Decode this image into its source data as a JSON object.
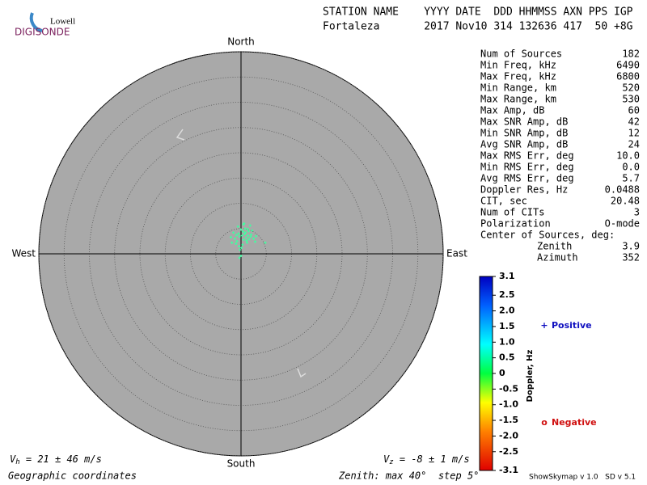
{
  "header": {
    "logo_top": "Lowell",
    "logo_bottom": "DIGISONDE",
    "columns": "STATION NAME    YYYY DATE  DDD HHMMSS AXN PPS IGP",
    "values": "Fortaleza       2017 Nov10 314 132636 417  50 +8G"
  },
  "stats": {
    "rows": [
      {
        "label": "Num of Sources",
        "value": "182"
      },
      {
        "label": "Min Freq, kHz",
        "value": "6490"
      },
      {
        "label": "Max Freq, kHz",
        "value": "6800"
      },
      {
        "label": "Min Range, km",
        "value": "520"
      },
      {
        "label": "Max Range, km",
        "value": "530"
      },
      {
        "label": "Max Amp, dB",
        "value": "60"
      },
      {
        "label": "Max SNR Amp, dB",
        "value": "42"
      },
      {
        "label": "Min SNR Amp, dB",
        "value": "12"
      },
      {
        "label": "Avg SNR Amp, dB",
        "value": "24"
      },
      {
        "label": "Max RMS Err, deg",
        "value": "10.0"
      },
      {
        "label": "Min RMS Err, deg",
        "value": "0.0"
      },
      {
        "label": "Avg RMS Err, deg",
        "value": "5.7"
      },
      {
        "label": "Doppler Res, Hz",
        "value": "0.0488"
      },
      {
        "label": "CIT, sec",
        "value": "20.48"
      },
      {
        "label": "Num of CITs",
        "value": "3"
      },
      {
        "label": "Polarization",
        "value": "O-mode"
      }
    ],
    "center": {
      "title": "Center of Sources, deg:",
      "rows": [
        {
          "label": "Zenith",
          "value": "3.9"
        },
        {
          "label": "Azimuth",
          "value": "352"
        }
      ]
    }
  },
  "chart_data": {
    "type": "scatter",
    "directions": {
      "north": "North",
      "east": "East",
      "south": "South",
      "west": "West"
    },
    "rlim": [
      0,
      40
    ],
    "rticks": [
      5,
      10,
      15,
      20,
      25,
      30,
      35,
      40
    ],
    "grid": true,
    "series": [
      {
        "color": "#40ffa0",
        "x": [
          0.2,
          -0.5,
          1.0,
          1.5,
          -1.2,
          0.8,
          2.0,
          -0.8,
          0.5,
          1.2,
          -1.5,
          0.0,
          2.5,
          1.8,
          -0.3,
          0.9,
          -1.0,
          1.4,
          0.3,
          2.2,
          -2.0,
          0.6,
          1.1,
          -0.6,
          3.0,
          0.1,
          1.6,
          -1.8,
          0.7,
          4.8,
          0.4,
          -0.2,
          1.3,
          0.0,
          2.8,
          -0.9,
          0.5,
          1.9,
          -0.4,
          -0.3
        ],
        "values": [
          3.6,
          4.0,
          3.2,
          4.5,
          3.0,
          5.0,
          3.8,
          2.5,
          2.8,
          2.2,
          4.2,
          4.8,
          3.0,
          5.6,
          3.4,
          4.2,
          2.0,
          3.6,
          1.8,
          4.6,
          3.3,
          6.0,
          2.6,
          5.4,
          3.5,
          1.2,
          2.9,
          2.2,
          3.9,
          2.2,
          4.4,
          0.8,
          4.9,
          -0.4,
          2.4,
          3.7,
          5.8,
          3.4,
          1.5,
          -0.8
        ]
      }
    ],
    "colorbar": {
      "label": "Doppler, Hz",
      "lim": [
        -3.1,
        3.1
      ],
      "ticks": [
        3.1,
        2.5,
        {
          "value": 2,
          "label": "2.0"
        },
        1.5,
        {
          "value": 1,
          "label": "1.0"
        },
        0.5,
        0,
        -0.5,
        {
          "value": -1,
          "label": "-1.0"
        },
        -1.5,
        {
          "value": -2,
          "label": "-2.0"
        },
        -2.5,
        -3.1
      ]
    },
    "legend": [
      {
        "symbol": "+",
        "label": "Positive",
        "color": "#1010c0"
      },
      {
        "symbol": "o",
        "label": "Negative",
        "color": "#d01010"
      }
    ]
  },
  "footer": {
    "vh": {
      "symbol": "V",
      "sub": "h",
      "text": " = 21 ± 46 m/s"
    },
    "vz": {
      "symbol": "V",
      "sub": "z",
      "text": " = -8 ± 1 m/s"
    },
    "coords": "Geographic coordinates",
    "zenith": "Zenith: max 40°  step 5°",
    "version": "ShowSkymap v 1.0   SD v 5.1"
  }
}
